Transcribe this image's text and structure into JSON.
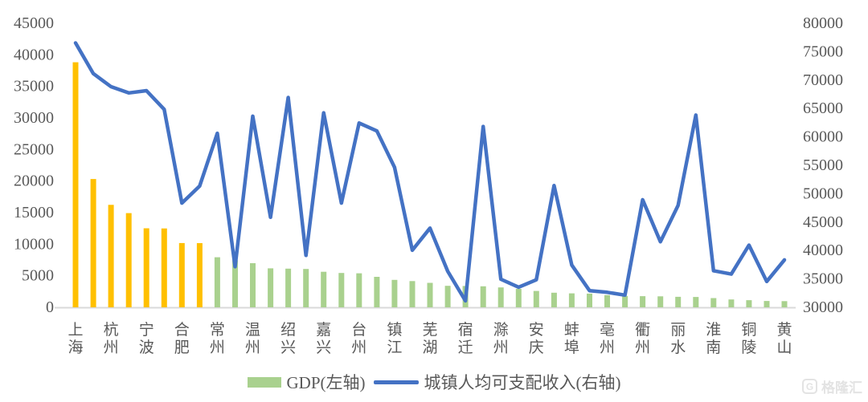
{
  "chart_data": {
    "type": "bar+line combo",
    "title": "",
    "n_points": 41,
    "x_tick_labels": [
      "上海",
      "杭州",
      "宁波",
      "合肥",
      "常州",
      "温州",
      "绍兴",
      "嘉兴",
      "台州",
      "镇江",
      "芜湖",
      "宿迁",
      "滁州",
      "安庆",
      "蚌埠",
      "亳州",
      "衢州",
      "丽水",
      "淮南",
      "铜陵",
      "黄山"
    ],
    "x_label_note": "one label under every second bar (odd bars labeled, even bars unlabeled)",
    "left_axis": {
      "min": 0,
      "max": 45000,
      "step": 5000,
      "tick_labels": [
        "45000",
        "40000",
        "35000",
        "30000",
        "25000",
        "20000",
        "15000",
        "10000",
        "5000",
        "0"
      ]
    },
    "right_axis": {
      "min": 30000,
      "max": 80000,
      "step": 5000,
      "tick_labels": [
        "80000",
        "75000",
        "70000",
        "65000",
        "60000",
        "55000",
        "50000",
        "45000",
        "40000",
        "35000",
        "30000"
      ]
    },
    "grid": "off",
    "legend_position": "bottom-center",
    "series": [
      {
        "name": "GDP(左轴)",
        "type": "bar",
        "axis": "left",
        "color": "#A9D18E",
        "highlight_color": "#FFC000",
        "highlight_first_n": 8,
        "values": [
          38700,
          20200,
          16100,
          14800,
          12400,
          12370,
          10050,
          10040,
          7800,
          7320,
          6870,
          6050,
          6000,
          5950,
          5510,
          5310,
          5260,
          4700,
          4220,
          4030,
          3750,
          3280,
          3260,
          3200,
          3030,
          2800,
          2470,
          2190,
          2080,
          2050,
          1810,
          1670,
          1640,
          1610,
          1540,
          1510,
          1340,
          1120,
          1000,
          880,
          850
        ]
      },
      {
        "name": "城镇人均可支配收入(右轴)",
        "type": "line",
        "axis": "right",
        "color": "#4472C4",
        "values": [
          76400,
          71000,
          68700,
          67600,
          68000,
          64700,
          48200,
          51200,
          60500,
          37000,
          63500,
          45700,
          66800,
          39000,
          64100,
          48200,
          62300,
          60900,
          54500,
          39900,
          43800,
          36200,
          31000,
          61700,
          34800,
          33400,
          34700,
          51300,
          37300,
          32800,
          32500,
          32000,
          48800,
          41400,
          47800,
          63700,
          36300,
          35700,
          40800,
          34400,
          38200
        ]
      }
    ]
  },
  "legend": {
    "gdp_label": "GDP(左轴)",
    "income_label": "城镇人均可支配收入(右轴)"
  },
  "watermark": {
    "logo_letter": "G",
    "text": "格隆汇"
  },
  "colors": {
    "axis_text": "#595959",
    "axis_line": "#D9D9D9",
    "background": "#FFFFFF",
    "bar_highlight": "#FFC000",
    "bar_normal": "#A9D18E",
    "line": "#4472C4"
  }
}
